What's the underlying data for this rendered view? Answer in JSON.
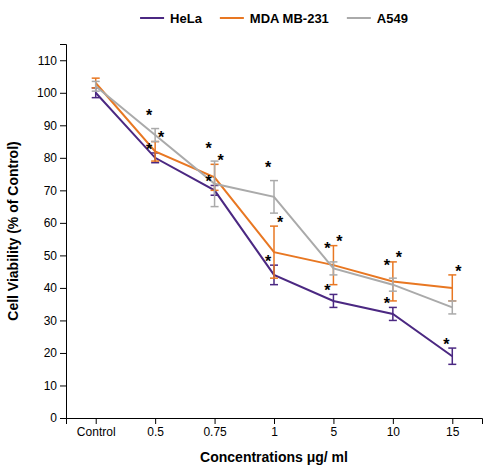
{
  "chart_data": {
    "type": "line",
    "x_label": "Concentrations μg/ ml",
    "y_label": "Cell  Viability (% of Control)",
    "categories": [
      "Control",
      "0.5",
      "0.75",
      "1",
      "5",
      "10",
      "15"
    ],
    "series": [
      {
        "name": "HeLa",
        "color": "#4B2882",
        "values": [
          100,
          80,
          70,
          44,
          36,
          32,
          19
        ],
        "errors": [
          1.5,
          1.5,
          1.5,
          3,
          2,
          2,
          2.5
        ]
      },
      {
        "name": "MDA MB-231",
        "color": "#E87722",
        "values": [
          103,
          82,
          74,
          51,
          47,
          42,
          40
        ],
        "errors": [
          1.5,
          3,
          4,
          8,
          6,
          6,
          4
        ]
      },
      {
        "name": "A549",
        "color": "#AAAAAA",
        "values": [
          102,
          87,
          72,
          68,
          46,
          41,
          34
        ],
        "errors": [
          1.5,
          2,
          7,
          5,
          2,
          2,
          2
        ]
      }
    ],
    "ylim": [
      0,
      115
    ],
    "yticks": [
      0,
      10,
      20,
      30,
      40,
      50,
      60,
      70,
      80,
      90,
      100,
      110
    ],
    "grid": false,
    "legend": "top",
    "annotations": [
      {
        "text": "*",
        "series": "HeLa",
        "x": "0.5"
      },
      {
        "text": "*",
        "series": "HeLa",
        "x": "0.75"
      },
      {
        "text": "*",
        "series": "HeLa",
        "x": "1"
      },
      {
        "text": "*",
        "series": "HeLa",
        "x": "5"
      },
      {
        "text": "*",
        "series": "HeLa",
        "x": "10"
      },
      {
        "text": "*",
        "series": "HeLa",
        "x": "15"
      },
      {
        "text": "*",
        "series": "MDA MB-231",
        "x": "0.5"
      },
      {
        "text": "*",
        "series": "MDA MB-231",
        "x": "0.75"
      },
      {
        "text": "*",
        "series": "MDA MB-231",
        "x": "1"
      },
      {
        "text": "*",
        "series": "MDA MB-231",
        "x": "5"
      },
      {
        "text": "*",
        "series": "MDA MB-231",
        "x": "10"
      },
      {
        "text": "*",
        "series": "MDA MB-231",
        "x": "15"
      },
      {
        "text": "*",
        "series": "A549",
        "x": "0.5"
      },
      {
        "text": "*",
        "series": "A549",
        "x": "0.75"
      },
      {
        "text": "*",
        "series": "A549",
        "x": "1"
      },
      {
        "text": "*",
        "series": "A549",
        "x": "5"
      },
      {
        "text": "*",
        "series": "A549",
        "x": "10"
      }
    ]
  }
}
